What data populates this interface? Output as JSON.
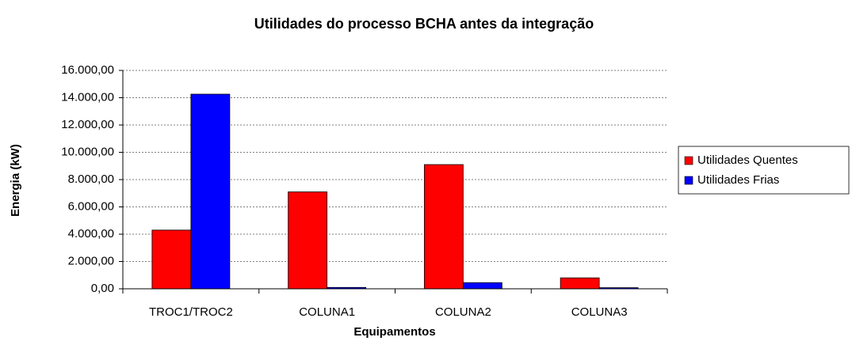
{
  "chart_data": {
    "type": "bar",
    "title": "Utilidades do processo BCHA antes da integração",
    "x_label": "Equipamentos",
    "y_label": "Energia (kW)",
    "categories": [
      "TROC1/TROC2",
      "COLUNA1",
      "COLUNA2",
      "COLUNA3"
    ],
    "series": [
      {
        "name": "Utilidades Quentes",
        "color": "#ff0000",
        "values": [
          4300,
          7100,
          9100,
          800
        ]
      },
      {
        "name": "Utilidades Frias",
        "color": "#0000ff",
        "values": [
          14260,
          100,
          450,
          80
        ]
      }
    ],
    "ylim": [
      0,
      16000
    ],
    "yticks": [
      {
        "value": 0,
        "label": "0,00"
      },
      {
        "value": 2000,
        "label": "2.000,00"
      },
      {
        "value": 4000,
        "label": "4.000,00"
      },
      {
        "value": 6000,
        "label": "6.000,00"
      },
      {
        "value": 8000,
        "label": "8.000,00"
      },
      {
        "value": 10000,
        "label": "10.000,00"
      },
      {
        "value": 12000,
        "label": "12.000,00"
      },
      {
        "value": 14000,
        "label": "14.000,00"
      },
      {
        "value": 16000,
        "label": "16.000,00"
      }
    ],
    "grid": true,
    "legend": "right"
  }
}
